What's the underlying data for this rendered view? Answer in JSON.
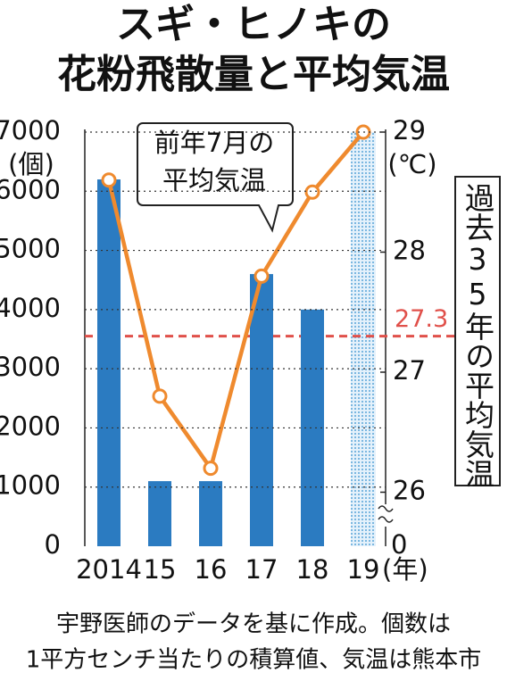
{
  "chart_data": {
    "type": "bar",
    "title_lines": [
      "スギ・ヒノキの",
      "花粉飛散量と平均気温"
    ],
    "categories": [
      "2014",
      "15",
      "16",
      "17",
      "18",
      "19"
    ],
    "x_unit": "(年)",
    "y_unit": "(個)",
    "y2_unit": "(℃)",
    "ylim": [
      0,
      7000
    ],
    "yticks": [
      0,
      1000,
      2000,
      3000,
      4000,
      5000,
      6000,
      7000
    ],
    "y2lim": [
      25.55,
      29
    ],
    "y2ticks": [
      26,
      27,
      28,
      29
    ],
    "y2_break_label": "0",
    "grid": true,
    "series": [
      {
        "type": "bar",
        "color": "#2b7bc1",
        "values": [
          6200,
          1100,
          1100,
          4600,
          4000,
          null
        ]
      },
      {
        "type": "line",
        "axis": "y2",
        "color": "#ef8a2e",
        "values": [
          28.6,
          26.8,
          26.2,
          27.8,
          28.5,
          29.0
        ]
      }
    ],
    "unknown_label": "?",
    "callout_lines": [
      "前年7月の",
      "平均気温"
    ],
    "reference": {
      "value": 27.3,
      "label": "27.3",
      "color": "#e0504a",
      "text_lines": "過去35年の平均気温"
    },
    "footer_lines": [
      "宇野医師のデータを基に作成。個数は",
      "1平方センチ当たりの積算値、気温は熊本市"
    ]
  }
}
